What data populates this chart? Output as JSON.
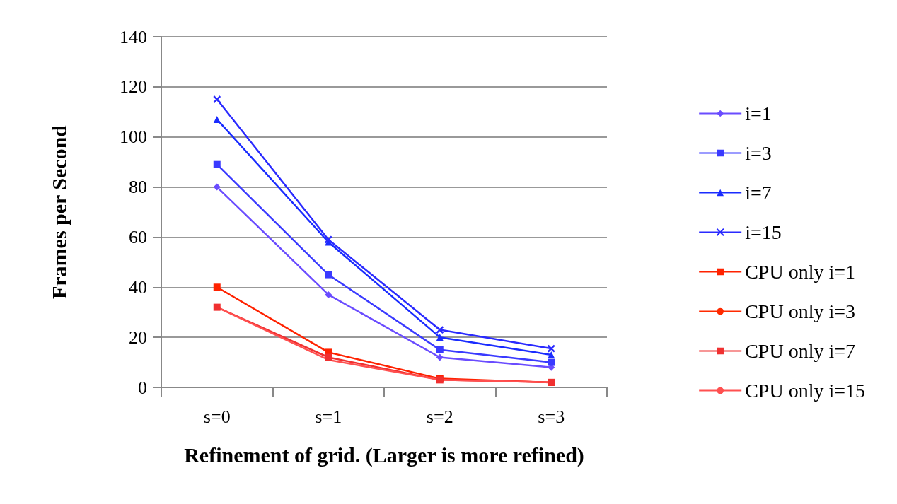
{
  "chart_data": {
    "type": "line",
    "xlabel": "Refinement of grid. (Larger is more refined)",
    "ylabel": "Frames per Second",
    "categories": [
      "s=0",
      "s=1",
      "s=2",
      "s=3"
    ],
    "series": [
      {
        "name": "i=1",
        "color": "#6a4cff",
        "marker": "diamond",
        "values": [
          80,
          37,
          12,
          8
        ]
      },
      {
        "name": "i=3",
        "color": "#3a3aff",
        "marker": "square",
        "values": [
          89,
          45,
          15,
          10
        ]
      },
      {
        "name": "i=7",
        "color": "#1a2cff",
        "marker": "triangle",
        "values": [
          107,
          58,
          20,
          13
        ]
      },
      {
        "name": "i=15",
        "color": "#2a2aff",
        "marker": "cross",
        "values": [
          115,
          59,
          23,
          15.5
        ]
      },
      {
        "name": "CPU only i=1",
        "color": "#ff2200",
        "marker": "square",
        "values": [
          40,
          14,
          3.5,
          2
        ]
      },
      {
        "name": "CPU only i=3",
        "color": "#ff2a00",
        "marker": "circle",
        "values": [
          null,
          null,
          null,
          null
        ]
      },
      {
        "name": "CPU only i=7",
        "color": "#f03030",
        "marker": "square",
        "values": [
          32,
          12,
          3,
          2
        ]
      },
      {
        "name": "CPU only i=15",
        "color": "#ff5050",
        "marker": "none",
        "values": [
          32,
          11,
          3,
          2
        ]
      }
    ],
    "ylim": [
      0,
      140
    ],
    "yticks": [
      0,
      20,
      40,
      60,
      80,
      100,
      120,
      140
    ],
    "grid": "y",
    "legend": "right"
  }
}
